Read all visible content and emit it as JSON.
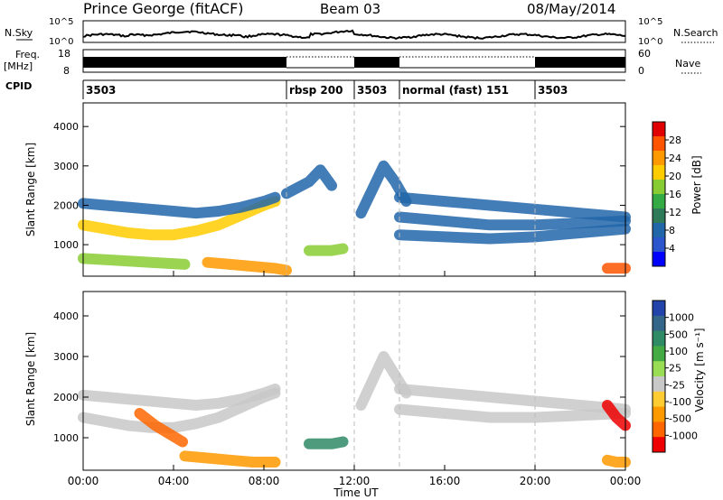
{
  "header": {
    "station": "Prince George (fitACF)",
    "beam": "Beam 03",
    "date": "08/May/2014"
  },
  "panels": {
    "nsky": {
      "left_label": "N.Sky",
      "right_label": "N.Search",
      "ticks": [
        "10^5",
        "10^0"
      ],
      "right_ticks": [
        "10^5",
        "10^0"
      ]
    },
    "freq": {
      "left_label_1": "Freq.",
      "left_label_2": "[MHz]",
      "right_label": "Nave",
      "ticks": [
        "18",
        "8"
      ],
      "right_ticks": [
        "60",
        "0"
      ]
    },
    "cpid": {
      "label": "CPID",
      "segments": [
        {
          "name": "3503",
          "start": 0,
          "end": 9
        },
        {
          "name": "rbsp 200",
          "start": 9,
          "end": 12
        },
        {
          "name": "3503",
          "start": 12,
          "end": 14
        },
        {
          "name": "normal (fast) 151",
          "start": 14,
          "end": 20
        },
        {
          "name": "3503",
          "start": 20,
          "end": 24
        }
      ]
    }
  },
  "colorbars": {
    "power": {
      "label": "Power [dB]",
      "ticks": [
        "28",
        "24",
        "20",
        "16",
        "12",
        "8",
        "4"
      ],
      "colors": [
        "#e00000",
        "#ff5500",
        "#ff9900",
        "#ffcc00",
        "#88cc33",
        "#33aa44",
        "#2f7a58",
        "#2266aa",
        "#2b55cc",
        "#0000ff"
      ]
    },
    "velocity": {
      "label": "Velocity [m s⁻¹]",
      "ticks": [
        "1000",
        "500",
        "100",
        "25",
        "-25",
        "-100",
        "-500",
        "-1000"
      ],
      "colors": [
        "#2244aa",
        "#336688",
        "#2f8a66",
        "#44aa44",
        "#99dd55",
        "#c8c8c8",
        "#ffcc33",
        "#ff9900",
        "#ff6600",
        "#ee0000"
      ]
    }
  },
  "axes": {
    "x_ticks": [
      "00:00",
      "04:00",
      "08:00",
      "12:00",
      "16:00",
      "20:00",
      "00:00"
    ],
    "x_label": "Time UT",
    "y_label": "Slant Range [km]",
    "y_ticks": [
      "4000",
      "3000",
      "2000",
      "1000"
    ]
  },
  "chart_data": [
    {
      "type": "heatmap",
      "title": "Power",
      "xlabel": "Time UT",
      "ylabel": "Slant Range [km]",
      "xlim": [
        0,
        24
      ],
      "ylim": [
        200,
        4600
      ],
      "colorbar": "Power [dB]",
      "bands": [
        {
          "t": [
            0,
            1,
            2,
            3,
            4,
            5,
            6,
            7,
            8,
            8.5
          ],
          "r": [
            1500,
            1400,
            1300,
            1250,
            1250,
            1350,
            1500,
            1750,
            2000,
            2100
          ],
          "value": 20
        },
        {
          "t": [
            0,
            1,
            2,
            3,
            4,
            5,
            6,
            7,
            8,
            8.5
          ],
          "r": [
            2050,
            2000,
            1950,
            1900,
            1850,
            1800,
            1850,
            1950,
            2100,
            2200
          ],
          "value": 8
        },
        {
          "t": [
            9,
            10,
            10.5,
            11
          ],
          "r": [
            2300,
            2600,
            2900,
            2500
          ],
          "value": 8
        },
        {
          "t": [
            12.3,
            12.8,
            13.3,
            13.8,
            14.3
          ],
          "r": [
            1800,
            2400,
            3000,
            2600,
            2100
          ],
          "value": 8
        },
        {
          "t": [
            14,
            16,
            18,
            20,
            22,
            24
          ],
          "r": [
            2200,
            2100,
            2000,
            1900,
            1800,
            1700
          ],
          "value": 6
        },
        {
          "t": [
            14,
            16,
            18,
            20,
            22,
            24
          ],
          "r": [
            1700,
            1600,
            1500,
            1500,
            1550,
            1600
          ],
          "value": 6
        },
        {
          "t": [
            14,
            16,
            18,
            20,
            22,
            24
          ],
          "r": [
            1250,
            1200,
            1150,
            1200,
            1300,
            1400
          ],
          "value": 6
        },
        {
          "t": [
            0,
            1.5,
            3,
            4.5
          ],
          "r": [
            650,
            600,
            550,
            500
          ],
          "value": 18
        },
        {
          "t": [
            5.5,
            6.5,
            7.5,
            8.5,
            9
          ],
          "r": [
            550,
            500,
            450,
            400,
            350
          ],
          "value": 24
        },
        {
          "t": [
            10,
            11,
            11.5
          ],
          "r": [
            850,
            850,
            900
          ],
          "value": 16
        },
        {
          "t": [
            23.2,
            23.6,
            24
          ],
          "r": [
            400,
            400,
            400
          ],
          "value": 26
        }
      ]
    },
    {
      "type": "heatmap",
      "title": "Velocity",
      "xlabel": "Time UT",
      "ylabel": "Slant Range [km]",
      "xlim": [
        0,
        24
      ],
      "ylim": [
        200,
        4600
      ],
      "colorbar": "Velocity [m s⁻¹]",
      "bands": [
        {
          "t": [
            0,
            1,
            2,
            3,
            4,
            5,
            6,
            7,
            8,
            8.5
          ],
          "r": [
            1500,
            1400,
            1300,
            1250,
            1250,
            1350,
            1500,
            1750,
            2000,
            2100
          ],
          "value": 0
        },
        {
          "t": [
            0,
            1,
            2,
            3,
            4,
            5,
            6,
            7,
            8,
            8.5
          ],
          "r": [
            2050,
            2000,
            1950,
            1900,
            1850,
            1800,
            1850,
            1950,
            2100,
            2200
          ],
          "value": 0
        },
        {
          "t": [
            2.5,
            3.2,
            3.8,
            4.4
          ],
          "r": [
            1600,
            1300,
            1100,
            900
          ],
          "value": -500
        },
        {
          "t": [
            4.5,
            5.5,
            6.5,
            7.5,
            8.5
          ],
          "r": [
            550,
            500,
            450,
            400,
            400
          ],
          "value": -200
        },
        {
          "t": [
            10,
            11,
            11.5
          ],
          "r": [
            850,
            850,
            900
          ],
          "value": 300
        },
        {
          "t": [
            12.3,
            13.3,
            14.3
          ],
          "r": [
            1800,
            3000,
            2100
          ],
          "value": 0
        },
        {
          "t": [
            14,
            16,
            18,
            20,
            22,
            24
          ],
          "r": [
            2200,
            2100,
            2000,
            1900,
            1800,
            1700
          ],
          "value": 0
        },
        {
          "t": [
            14,
            16,
            18,
            20,
            22,
            24
          ],
          "r": [
            1700,
            1600,
            1500,
            1500,
            1550,
            1600
          ],
          "value": 0
        },
        {
          "t": [
            23.2,
            23.6,
            24
          ],
          "r": [
            1800,
            1500,
            1300
          ],
          "value": -800
        },
        {
          "t": [
            23.2,
            23.6,
            24
          ],
          "r": [
            450,
            400,
            400
          ],
          "value": -300
        }
      ]
    }
  ]
}
